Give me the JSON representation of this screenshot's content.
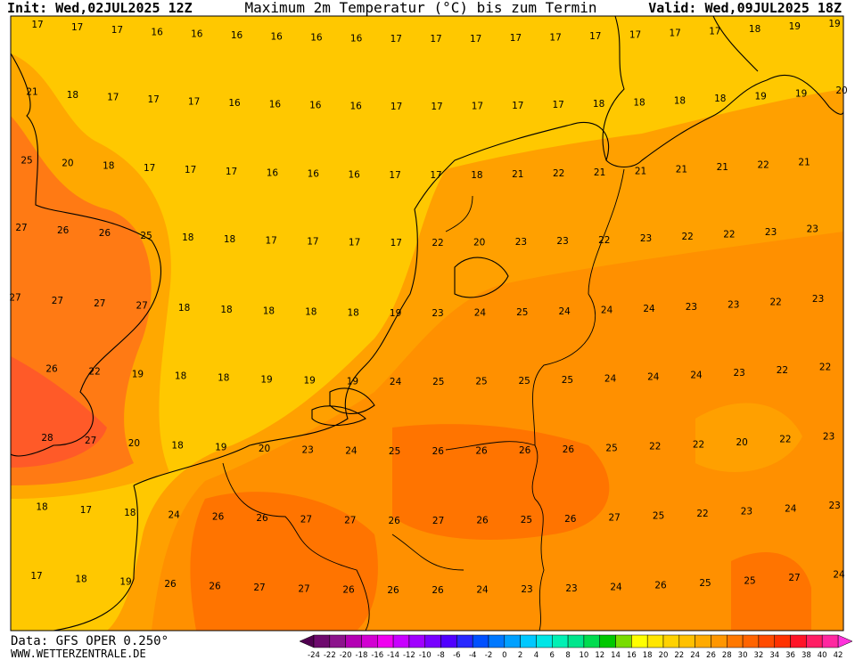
{
  "header": {
    "init": "Init: Wed,02JUL2025 12Z",
    "title": "Maximum 2m Temperatur (°C) bis zum Termin",
    "valid": "Valid: Wed,09JUL2025 18Z"
  },
  "map": {
    "rows": [
      [
        17,
        17,
        17,
        16,
        16,
        16,
        16,
        16,
        16,
        17,
        17,
        17,
        17,
        17,
        17,
        17,
        17,
        17,
        18,
        19,
        19
      ],
      [
        21,
        18,
        17,
        17,
        17,
        16,
        16,
        16,
        16,
        17,
        17,
        17,
        17,
        17,
        18,
        18,
        18,
        18,
        19,
        19,
        20
      ],
      [
        25,
        20,
        18,
        17,
        17,
        17,
        16,
        16,
        16,
        17,
        17,
        18,
        21,
        22,
        21,
        21,
        21,
        21,
        22,
        21
      ],
      [
        27,
        26,
        26,
        25,
        18,
        18,
        17,
        17,
        17,
        17,
        22,
        20,
        23,
        23,
        22,
        23,
        22,
        22,
        23,
        23
      ],
      [
        27,
        27,
        27,
        27,
        18,
        18,
        18,
        18,
        18,
        19,
        23,
        24,
        25,
        24,
        24,
        24,
        23,
        23,
        22,
        23
      ],
      [
        26,
        22,
        19,
        18,
        18,
        19,
        19,
        19,
        24,
        25,
        25,
        25,
        25,
        24,
        24,
        24,
        23,
        22,
        22
      ],
      [
        28,
        27,
        20,
        18,
        19,
        20,
        23,
        24,
        25,
        26,
        26,
        26,
        26,
        25,
        22,
        22,
        20,
        22,
        23
      ],
      [
        18,
        17,
        18,
        24,
        26,
        26,
        27,
        27,
        26,
        27,
        26,
        25,
        26,
        27,
        25,
        22,
        23,
        24,
        23
      ],
      [
        17,
        18,
        19,
        26,
        26,
        27,
        27,
        26,
        26,
        26,
        24,
        23,
        23,
        24,
        26,
        25,
        25,
        27,
        24
      ]
    ]
  },
  "colorbar": {
    "ticks": [
      -24,
      -22,
      -20,
      -18,
      -16,
      -14,
      -12,
      -10,
      -8,
      -6,
      -4,
      -2,
      0,
      2,
      4,
      6,
      8,
      10,
      12,
      14,
      16,
      18,
      20,
      22,
      24,
      26,
      28,
      30,
      32,
      34,
      36,
      38,
      40,
      42
    ],
    "colors": [
      "#500050",
      "#6e0a6e",
      "#8c148c",
      "#b400b4",
      "#d200d2",
      "#f000f0",
      "#c800ff",
      "#a000ff",
      "#7800ff",
      "#5000ff",
      "#2828ff",
      "#0050ff",
      "#0078ff",
      "#00a0ff",
      "#00c8ff",
      "#00e6e6",
      "#00f0b4",
      "#00e68c",
      "#00dc50",
      "#00c800",
      "#78dc00",
      "#ffff00",
      "#ffe600",
      "#ffd200",
      "#ffc000",
      "#ffaa00",
      "#ff9600",
      "#ff7800",
      "#ff6400",
      "#ff4b00",
      "#ff3200",
      "#ff1428",
      "#ff1e64",
      "#ff28a0",
      "#ff32dc"
    ]
  },
  "footer": {
    "source": "Data: GFS OPER 0.250°",
    "website": "WWW.WETTERZENTRALE.DE"
  }
}
